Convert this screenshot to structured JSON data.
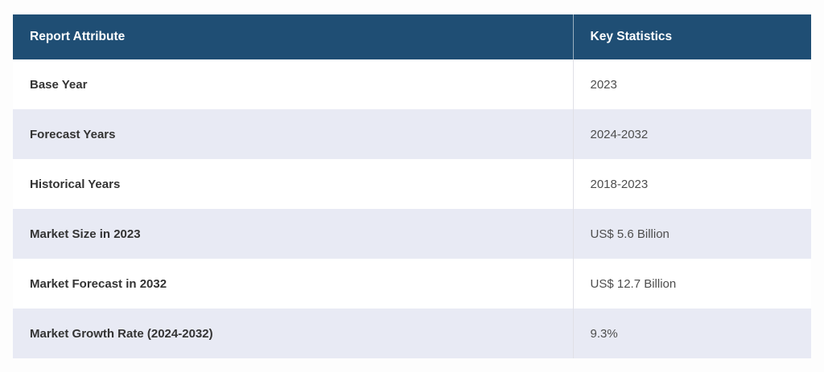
{
  "table": {
    "columns": [
      {
        "label": "Report Attribute"
      },
      {
        "label": "Key Statistics"
      }
    ],
    "rows": [
      {
        "attribute": "Base Year",
        "value": "2023"
      },
      {
        "attribute": "Forecast Years",
        "value": "2024-2032"
      },
      {
        "attribute": "Historical Years",
        "value": "2018-2023"
      },
      {
        "attribute": "Market Size in 2023",
        "value": "US$ 5.6 Billion"
      },
      {
        "attribute": "Market Forecast in 2032",
        "value": "US$ 12.7 Billion"
      },
      {
        "attribute": "Market Growth Rate (2024-2032)",
        "value": "9.3%"
      }
    ],
    "colors": {
      "header_bg": "#1F4E74",
      "header_text": "#FFFFFF",
      "alt_row_bg": "#E8EAF4",
      "row_bg": "#FFFFFF",
      "label_text": "#333333",
      "value_text": "#4D4D4D",
      "divider": "#E0E0E6",
      "page_bg": "#FDFDFD"
    }
  },
  "chart_data": {
    "type": "table",
    "title": "",
    "columns": [
      "Report Attribute",
      "Key Statistics"
    ],
    "rows": [
      [
        "Base Year",
        "2023"
      ],
      [
        "Forecast Years",
        "2024-2032"
      ],
      [
        "Historical Years",
        "2018-2023"
      ],
      [
        "Market Size in 2023",
        "US$ 5.6 Billion"
      ],
      [
        "Market Forecast in 2032",
        "US$ 12.7 Billion"
      ],
      [
        "Market Growth Rate (2024-2032)",
        "9.3%"
      ]
    ],
    "layout_hints": {
      "header_style": "dark-blue background, white bold text",
      "row_striping": "white / light-lavender alternating",
      "column_width_ratio": [
        0.7,
        0.3
      ]
    }
  }
}
